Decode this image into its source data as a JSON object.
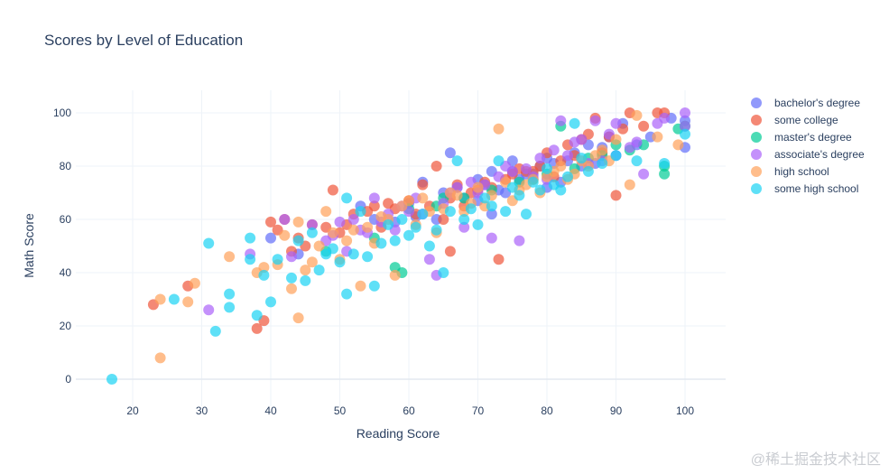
{
  "chart_data": {
    "type": "scatter",
    "title": "Scores by Level of Education",
    "xlabel": "Reading Score",
    "ylabel": "Math Score",
    "xlim": [
      12,
      106
    ],
    "ylim": [
      -10,
      110
    ],
    "xticks": [
      20,
      30,
      40,
      50,
      60,
      70,
      80,
      90,
      100
    ],
    "yticks": [
      0,
      20,
      40,
      60,
      80,
      100
    ],
    "grid": true,
    "legend_position": "top-right",
    "series": [
      {
        "name": "bachelor's degree",
        "color": "#636efa",
        "points": [
          [
            40,
            53
          ],
          [
            44,
            47
          ],
          [
            53,
            65
          ],
          [
            55,
            60
          ],
          [
            58,
            59
          ],
          [
            60,
            66
          ],
          [
            61,
            61
          ],
          [
            62,
            74
          ],
          [
            64,
            60
          ],
          [
            65,
            70
          ],
          [
            66,
            85
          ],
          [
            67,
            72
          ],
          [
            68,
            68
          ],
          [
            70,
            67
          ],
          [
            70,
            75
          ],
          [
            71,
            73
          ],
          [
            72,
            62
          ],
          [
            72,
            78
          ],
          [
            73,
            71
          ],
          [
            74,
            70
          ],
          [
            75,
            78
          ],
          [
            75,
            82
          ],
          [
            76,
            75
          ],
          [
            77,
            77
          ],
          [
            78,
            77
          ],
          [
            79,
            80
          ],
          [
            80,
            83
          ],
          [
            80,
            72
          ],
          [
            81,
            81
          ],
          [
            82,
            74
          ],
          [
            83,
            82
          ],
          [
            84,
            85
          ],
          [
            85,
            80
          ],
          [
            86,
            88
          ],
          [
            87,
            81
          ],
          [
            88,
            87
          ],
          [
            89,
            91
          ],
          [
            90,
            84
          ],
          [
            91,
            96
          ],
          [
            93,
            88
          ],
          [
            95,
            91
          ],
          [
            98,
            98
          ],
          [
            100,
            97
          ],
          [
            100,
            87
          ]
        ]
      },
      {
        "name": "some college",
        "color": "#ef553b",
        "points": [
          [
            23,
            28
          ],
          [
            28,
            35
          ],
          [
            38,
            19
          ],
          [
            39,
            22
          ],
          [
            40,
            59
          ],
          [
            41,
            56
          ],
          [
            42,
            60
          ],
          [
            43,
            48
          ],
          [
            44,
            53
          ],
          [
            45,
            50
          ],
          [
            46,
            58
          ],
          [
            48,
            57
          ],
          [
            49,
            71
          ],
          [
            50,
            55
          ],
          [
            51,
            58
          ],
          [
            52,
            62
          ],
          [
            54,
            63
          ],
          [
            55,
            65
          ],
          [
            56,
            57
          ],
          [
            57,
            66
          ],
          [
            58,
            64
          ],
          [
            60,
            67
          ],
          [
            61,
            62
          ],
          [
            62,
            73
          ],
          [
            63,
            65
          ],
          [
            64,
            80
          ],
          [
            65,
            60
          ],
          [
            66,
            48
          ],
          [
            66,
            68
          ],
          [
            67,
            73
          ],
          [
            68,
            65
          ],
          [
            69,
            70
          ],
          [
            70,
            71
          ],
          [
            71,
            74
          ],
          [
            72,
            72
          ],
          [
            73,
            45
          ],
          [
            74,
            75
          ],
          [
            75,
            77
          ],
          [
            76,
            79
          ],
          [
            77,
            78
          ],
          [
            78,
            78
          ],
          [
            79,
            80
          ],
          [
            80,
            85
          ],
          [
            81,
            76
          ],
          [
            82,
            82
          ],
          [
            83,
            88
          ],
          [
            84,
            84
          ],
          [
            85,
            90
          ],
          [
            86,
            92
          ],
          [
            87,
            98
          ],
          [
            88,
            85
          ],
          [
            89,
            91
          ],
          [
            90,
            69
          ],
          [
            91,
            94
          ],
          [
            92,
            100
          ],
          [
            94,
            95
          ],
          [
            96,
            100
          ],
          [
            97,
            100
          ]
        ]
      },
      {
        "name": "master's degree",
        "color": "#00cc96",
        "points": [
          [
            48,
            48
          ],
          [
            55,
            53
          ],
          [
            58,
            42
          ],
          [
            59,
            40
          ],
          [
            60,
            64
          ],
          [
            64,
            65
          ],
          [
            65,
            68
          ],
          [
            68,
            68
          ],
          [
            72,
            71
          ],
          [
            76,
            74
          ],
          [
            78,
            75
          ],
          [
            80,
            77
          ],
          [
            82,
            95
          ],
          [
            84,
            79
          ],
          [
            86,
            83
          ],
          [
            88,
            84
          ],
          [
            90,
            88
          ],
          [
            92,
            86
          ],
          [
            94,
            88
          ],
          [
            97,
            77
          ],
          [
            97,
            80
          ],
          [
            99,
            94
          ],
          [
            100,
            95
          ]
        ]
      },
      {
        "name": "associate's degree",
        "color": "#ab63fa",
        "points": [
          [
            31,
            26
          ],
          [
            37,
            47
          ],
          [
            42,
            60
          ],
          [
            43,
            46
          ],
          [
            46,
            58
          ],
          [
            48,
            52
          ],
          [
            49,
            54
          ],
          [
            50,
            59
          ],
          [
            51,
            48
          ],
          [
            52,
            60
          ],
          [
            53,
            56
          ],
          [
            54,
            55
          ],
          [
            55,
            68
          ],
          [
            56,
            59
          ],
          [
            57,
            62
          ],
          [
            58,
            56
          ],
          [
            59,
            65
          ],
          [
            60,
            63
          ],
          [
            61,
            68
          ],
          [
            62,
            62
          ],
          [
            63,
            45
          ],
          [
            64,
            39
          ],
          [
            65,
            66
          ],
          [
            66,
            70
          ],
          [
            67,
            72
          ],
          [
            68,
            57
          ],
          [
            69,
            74
          ],
          [
            70,
            70
          ],
          [
            71,
            73
          ],
          [
            72,
            53
          ],
          [
            73,
            76
          ],
          [
            74,
            80
          ],
          [
            75,
            78
          ],
          [
            76,
            52
          ],
          [
            77,
            79
          ],
          [
            78,
            76
          ],
          [
            79,
            83
          ],
          [
            80,
            75
          ],
          [
            81,
            86
          ],
          [
            82,
            97
          ],
          [
            83,
            84
          ],
          [
            84,
            89
          ],
          [
            85,
            90
          ],
          [
            86,
            81
          ],
          [
            87,
            97
          ],
          [
            88,
            82
          ],
          [
            89,
            92
          ],
          [
            90,
            96
          ],
          [
            92,
            87
          ],
          [
            93,
            89
          ],
          [
            94,
            77
          ],
          [
            96,
            96
          ],
          [
            97,
            98
          ],
          [
            100,
            95
          ],
          [
            100,
            100
          ]
        ]
      },
      {
        "name": "high school",
        "color": "#ffa15a",
        "points": [
          [
            24,
            8
          ],
          [
            24,
            30
          ],
          [
            28,
            29
          ],
          [
            29,
            36
          ],
          [
            34,
            46
          ],
          [
            38,
            40
          ],
          [
            39,
            42
          ],
          [
            41,
            43
          ],
          [
            42,
            54
          ],
          [
            43,
            34
          ],
          [
            44,
            23
          ],
          [
            44,
            59
          ],
          [
            45,
            41
          ],
          [
            46,
            44
          ],
          [
            47,
            50
          ],
          [
            48,
            63
          ],
          [
            49,
            55
          ],
          [
            50,
            45
          ],
          [
            51,
            52
          ],
          [
            52,
            56
          ],
          [
            53,
            35
          ],
          [
            54,
            57
          ],
          [
            55,
            51
          ],
          [
            56,
            61
          ],
          [
            57,
            60
          ],
          [
            58,
            39
          ],
          [
            59,
            65
          ],
          [
            60,
            67
          ],
          [
            61,
            58
          ],
          [
            62,
            68
          ],
          [
            63,
            63
          ],
          [
            64,
            55
          ],
          [
            65,
            64
          ],
          [
            66,
            70
          ],
          [
            67,
            69
          ],
          [
            68,
            63
          ],
          [
            69,
            66
          ],
          [
            70,
            72
          ],
          [
            71,
            65
          ],
          [
            72,
            69
          ],
          [
            73,
            94
          ],
          [
            74,
            74
          ],
          [
            75,
            67
          ],
          [
            76,
            71
          ],
          [
            77,
            73
          ],
          [
            78,
            75
          ],
          [
            79,
            70
          ],
          [
            80,
            76
          ],
          [
            81,
            78
          ],
          [
            82,
            80
          ],
          [
            83,
            75
          ],
          [
            84,
            77
          ],
          [
            85,
            82
          ],
          [
            86,
            80
          ],
          [
            87,
            84
          ],
          [
            88,
            86
          ],
          [
            89,
            82
          ],
          [
            90,
            90
          ],
          [
            92,
            73
          ],
          [
            93,
            99
          ],
          [
            96,
            91
          ],
          [
            99,
            88
          ]
        ]
      },
      {
        "name": "some high school",
        "color": "#19d3f3",
        "points": [
          [
            17,
            0
          ],
          [
            26,
            30
          ],
          [
            31,
            51
          ],
          [
            32,
            18
          ],
          [
            34,
            27
          ],
          [
            34,
            32
          ],
          [
            37,
            45
          ],
          [
            37,
            53
          ],
          [
            38,
            24
          ],
          [
            39,
            39
          ],
          [
            40,
            29
          ],
          [
            41,
            45
          ],
          [
            43,
            38
          ],
          [
            44,
            52
          ],
          [
            45,
            37
          ],
          [
            46,
            55
          ],
          [
            47,
            41
          ],
          [
            48,
            47
          ],
          [
            49,
            49
          ],
          [
            50,
            44
          ],
          [
            51,
            32
          ],
          [
            51,
            68
          ],
          [
            52,
            47
          ],
          [
            53,
            63
          ],
          [
            54,
            46
          ],
          [
            55,
            35
          ],
          [
            56,
            51
          ],
          [
            57,
            58
          ],
          [
            58,
            52
          ],
          [
            59,
            60
          ],
          [
            60,
            54
          ],
          [
            61,
            57
          ],
          [
            62,
            62
          ],
          [
            63,
            50
          ],
          [
            64,
            56
          ],
          [
            65,
            40
          ],
          [
            66,
            63
          ],
          [
            67,
            82
          ],
          [
            68,
            60
          ],
          [
            69,
            64
          ],
          [
            70,
            58
          ],
          [
            71,
            68
          ],
          [
            72,
            65
          ],
          [
            73,
            82
          ],
          [
            74,
            63
          ],
          [
            75,
            72
          ],
          [
            76,
            69
          ],
          [
            77,
            62
          ],
          [
            78,
            74
          ],
          [
            79,
            71
          ],
          [
            80,
            79
          ],
          [
            81,
            73
          ],
          [
            82,
            71
          ],
          [
            83,
            76
          ],
          [
            84,
            96
          ],
          [
            85,
            83
          ],
          [
            86,
            78
          ],
          [
            88,
            81
          ],
          [
            90,
            84
          ],
          [
            93,
            82
          ],
          [
            97,
            81
          ],
          [
            100,
            92
          ]
        ]
      }
    ]
  },
  "watermark": "@稀土掘金技术社区"
}
